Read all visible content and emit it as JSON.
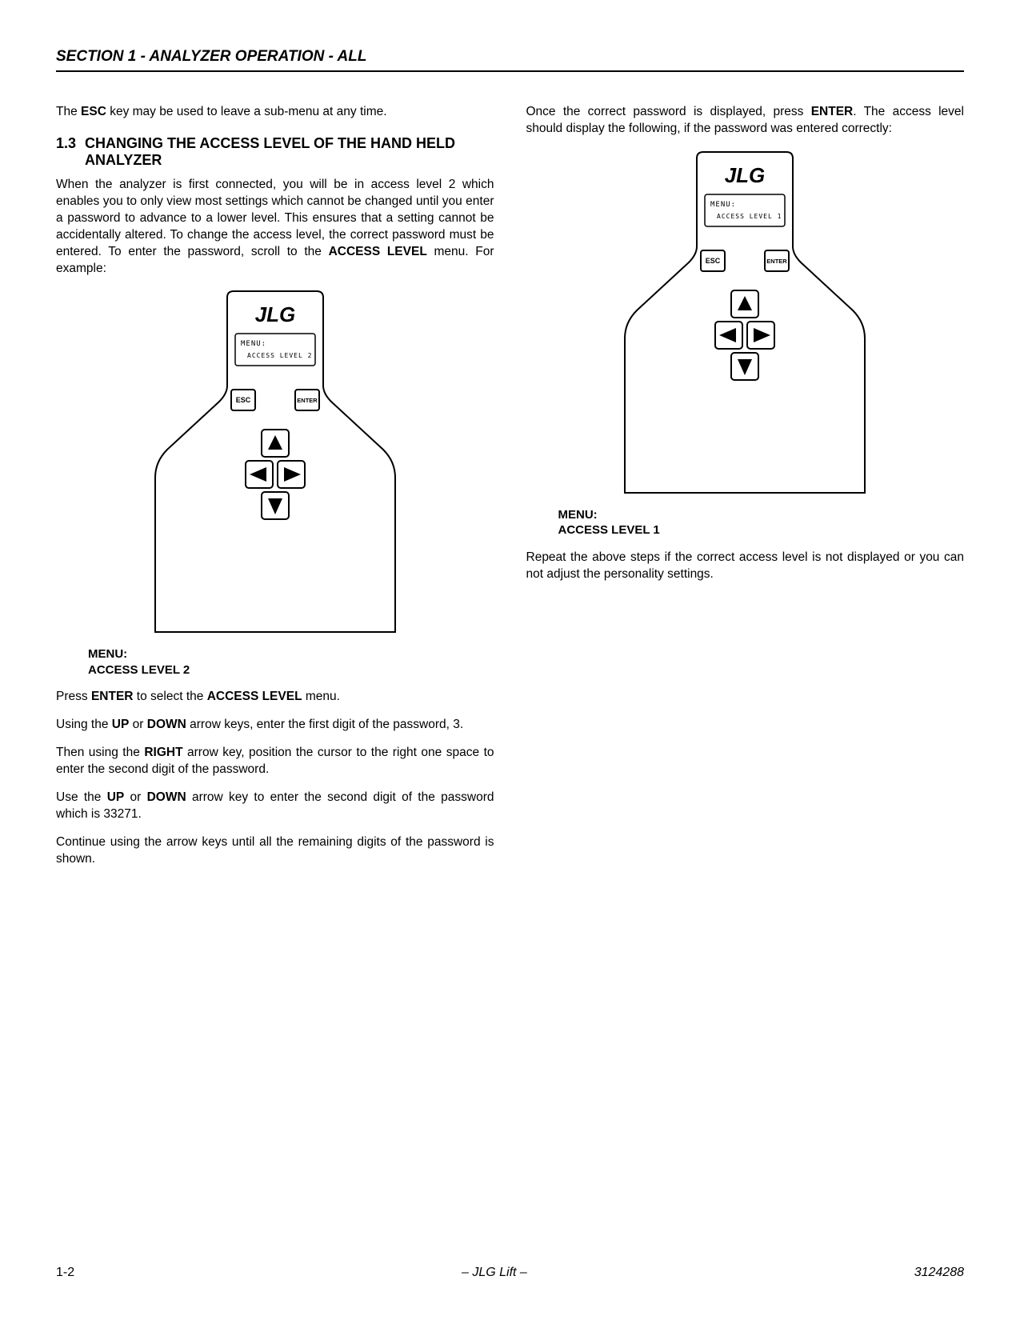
{
  "header": {
    "section_title": "SECTION 1 - ANALYZER OPERATION - ALL"
  },
  "left_column": {
    "intro_para_html": "The <span class=\"b\">ESC</span> key may be used to leave a sub-menu at any time.",
    "heading_number": "1.3",
    "heading_title": "CHANGING THE ACCESS LEVEL OF THE HAND HELD ANALYZER",
    "para1_html": "When the analyzer is first connected, you will be in access level 2 which enables you to only view most settings which cannot be changed until you enter a password to advance to a lower level. This ensures that a setting cannot be accidentally altered. To change the access level, the correct password must be entered. To enter the password, scroll to the <span class=\"b\">ACCESS LEVEL</span> menu. For example:",
    "caption1_line1": "MENU:",
    "caption1_line2": "ACCESS LEVEL 2",
    "para2_html": "Press <span class=\"b\">ENTER</span> to select the <span class=\"b\">ACCESS LEVEL</span> menu.",
    "para3_html": "Using the <span class=\"b\">UP</span> or <span class=\"b\">DOWN</span> arrow keys, enter the first digit of the password, 3.",
    "para4_html": "Then using the <span class=\"b\">RIGHT</span> arrow key, position the cursor to the right one space to enter the second digit of the password.",
    "para5_html": "Use the <span class=\"b\">UP</span> or <span class=\"b\">DOWN</span> arrow key to enter the second digit of the password which is 33271.",
    "para6_html": "Continue using the arrow keys until all the remaining digits of the password is shown."
  },
  "right_column": {
    "intro_para_html": "Once the correct password is displayed, press <span class=\"b\">ENTER</span>. The access level should display the following, if the password was entered correctly:",
    "caption1_line1": "MENU:",
    "caption1_line2": "ACCESS LEVEL 1",
    "para1_html": "Repeat the above steps if the correct access level is not displayed or you can not adjust the personality settings."
  },
  "analyzer_diagram": {
    "brand": "JLG",
    "screen_line1": "MENU:",
    "screen_line2_left_col": "ACCESS LEVEL 2",
    "screen_line2_right_col": "ACCESS LEVEL 1",
    "esc_label": "ESC",
    "enter_label": "ENTER",
    "outline_color": "#000000",
    "outline_width": 2,
    "background_color": "#ffffff",
    "screen_font_family": "monospace",
    "button_border_width": 2,
    "arrow_fill": "#000000"
  },
  "footer": {
    "page_number": "1-2",
    "center_text": "– JLG Lift –",
    "doc_number": "3124288"
  }
}
